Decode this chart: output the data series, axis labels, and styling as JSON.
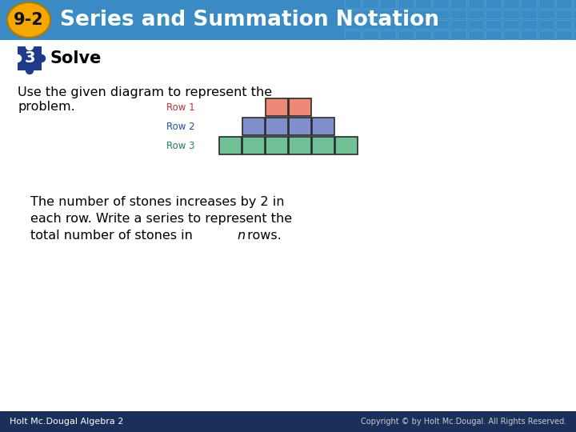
{
  "title": "Series and Summation Notation",
  "title_badge": "9-2",
  "header_bg_color": "#3a8bc4",
  "header_grid_color": "#5aaad8",
  "badge_color": "#f5a800",
  "body_bg_color": "#ffffff",
  "step_badge_color": "#1e3a8a",
  "step_number": "3",
  "step_label": "Solve",
  "text_line1": "Use the given diagram to represent the",
  "text_line2": "problem.",
  "row_labels": [
    "Row 1",
    "Row 2",
    "Row 3"
  ],
  "row_colors": [
    "#f08878",
    "#8090cc",
    "#70c098"
  ],
  "row_label_colors": [
    "#c03030",
    "#2050a0",
    "#208060"
  ],
  "row_counts": [
    2,
    4,
    6
  ],
  "bottom_text_lines": [
    "The number of stones increases by 2 in",
    "each row. Write a series to represent the",
    "total number of stones in "
  ],
  "bottom_text_italic": "n",
  "bottom_text_suffix": " rows.",
  "footer_text_left": "Holt Mc.Dougal Algebra 2",
  "footer_bg_color": "#1a2f5a",
  "footer_copyright": "Copyright © by Holt Mc.Dougal. All Rights Reserved."
}
